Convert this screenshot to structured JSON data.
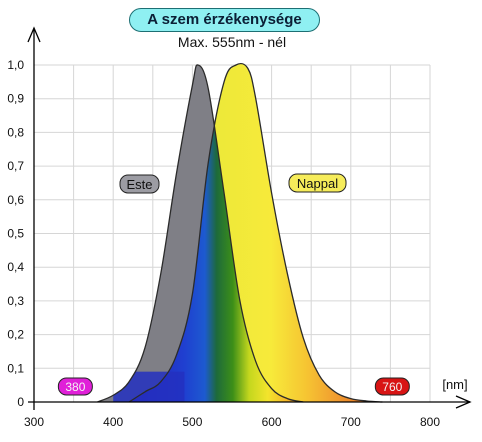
{
  "chart_data": {
    "type": "area",
    "title": "A szem érzékenysége",
    "subtitle": "Max. 555nm - nél",
    "xlabel": "[nm]",
    "ylabel": "",
    "xlim": [
      300,
      800
    ],
    "ylim": [
      0,
      1.0
    ],
    "x_ticks": [
      300,
      400,
      500,
      600,
      700,
      800
    ],
    "y_ticks": [
      "0",
      "0,1",
      "0,2",
      "0,3",
      "0,4",
      "0,5",
      "0,6",
      "0,7",
      "0,8",
      "0,9",
      "1,0"
    ],
    "grid": true,
    "series": [
      {
        "name": "Este",
        "color": "#7f7f86",
        "x": [
          380,
          400,
          420,
          440,
          460,
          480,
          500,
          507,
          520,
          540,
          560,
          580,
          600,
          620,
          640
        ],
        "values": [
          0.0,
          0.02,
          0.06,
          0.16,
          0.38,
          0.68,
          0.94,
          1.0,
          0.93,
          0.62,
          0.3,
          0.12,
          0.04,
          0.01,
          0.0
        ]
      },
      {
        "name": "Nappal",
        "color": "#f6e84a",
        "x": [
          420,
          440,
          460,
          480,
          500,
          520,
          540,
          555,
          570,
          580,
          600,
          620,
          640,
          660,
          680,
          700,
          720,
          740
        ],
        "values": [
          0.0,
          0.03,
          0.06,
          0.14,
          0.32,
          0.71,
          0.95,
          1.0,
          0.99,
          0.9,
          0.62,
          0.38,
          0.19,
          0.08,
          0.03,
          0.01,
          0.003,
          0.0
        ]
      }
    ],
    "annotations": [
      {
        "text": "380",
        "x": 380,
        "color": "#e020d8"
      },
      {
        "text": "760",
        "x": 760,
        "color": "#d81414"
      }
    ]
  }
}
